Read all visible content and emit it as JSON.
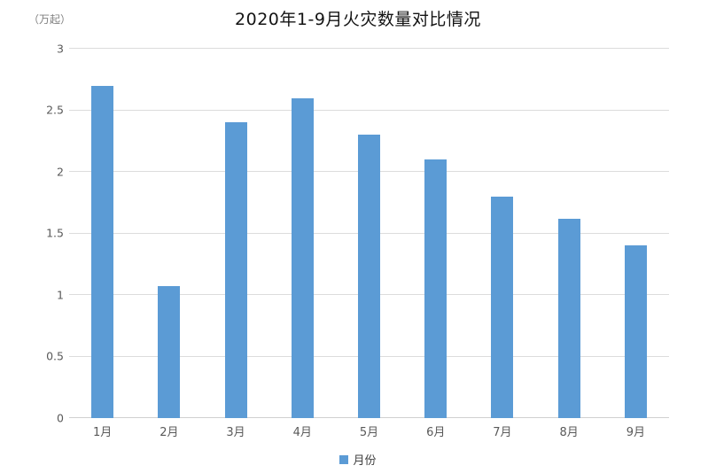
{
  "chart_data": {
    "type": "bar",
    "title": "2020年1-9月火灾数量对比情况",
    "unit_label": "（万起）",
    "categories": [
      "1月",
      "2月",
      "3月",
      "4月",
      "5月",
      "6月",
      "7月",
      "8月",
      "9月"
    ],
    "values": [
      2.7,
      1.07,
      2.4,
      2.6,
      2.3,
      2.1,
      1.8,
      1.62,
      1.4
    ],
    "xlabel": "",
    "ylabel": "（万起）",
    "ylim": [
      0,
      3
    ],
    "yticks": [
      "0",
      "0.5",
      "1",
      "1.5",
      "2",
      "2.5",
      "3"
    ],
    "grid": true,
    "legend": {
      "position": "bottom",
      "label": "月份"
    },
    "bar_color": "#5B9BD5"
  }
}
